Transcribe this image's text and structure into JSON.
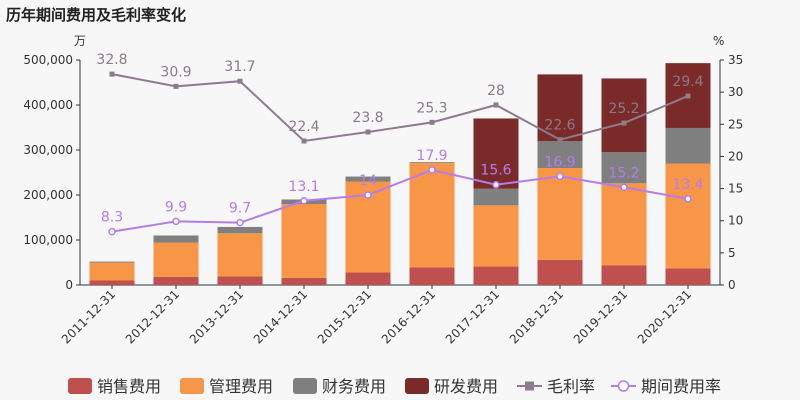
{
  "chart_data": {
    "type": "bar",
    "title": "历年期间费用及毛利率变化",
    "y_left_unit": "万",
    "y_right_unit": "%",
    "y_left_lim": [
      0,
      500000
    ],
    "y_left_ticks": [
      "0",
      "100,000",
      "200,000",
      "300,000",
      "400,000",
      "500,000"
    ],
    "y_right_lim": [
      0,
      35
    ],
    "y_right_ticks": [
      "0",
      "5",
      "10",
      "15",
      "20",
      "25",
      "30",
      "35"
    ],
    "categories": [
      "2011-12-31",
      "2012-12-31",
      "2013-12-31",
      "2014-12-31",
      "2015-12-31",
      "2016-12-31",
      "2017-12-31",
      "2018-12-31",
      "2019-12-31",
      "2020-12-31"
    ],
    "stacked_series": [
      {
        "name": "销售费用",
        "color": "#c0504d",
        "values": [
          10000,
          18000,
          19000,
          16000,
          28000,
          39000,
          41000,
          56000,
          44000,
          37000
        ]
      },
      {
        "name": "管理费用",
        "color": "#f79646",
        "values": [
          40000,
          76000,
          96000,
          164000,
          202000,
          232000,
          136000,
          204000,
          182000,
          233000
        ]
      },
      {
        "name": "财务费用",
        "color": "#7f7f7f",
        "values": [
          2000,
          16000,
          14000,
          10000,
          11000,
          2000,
          37000,
          60000,
          69000,
          79000
        ]
      },
      {
        "name": "研发费用",
        "color": "#7b2a2a",
        "values": [
          0,
          0,
          0,
          0,
          0,
          0,
          156000,
          148000,
          164000,
          144000
        ]
      }
    ],
    "line_series": [
      {
        "name": "毛利率",
        "color": "#8e7b8e",
        "marker": "square",
        "values": [
          32.8,
          30.9,
          31.7,
          22.4,
          23.8,
          25.3,
          28,
          22.6,
          25.2,
          29.4
        ],
        "labels": [
          "32.8",
          "30.9",
          "31.7",
          "22.4",
          "23.8",
          "25.3",
          "28",
          "22.6",
          "25.2",
          "29.4"
        ]
      },
      {
        "name": "期间费用率",
        "color": "#b57cf0",
        "marker": "circle",
        "values": [
          8.3,
          9.9,
          9.7,
          13.1,
          14,
          17.9,
          15.6,
          16.9,
          15.2,
          13.4
        ],
        "labels": [
          "8.3",
          "9.9",
          "9.7",
          "13.1",
          "14",
          "17.9",
          "15.6",
          "16.9",
          "15.2",
          "13.4"
        ]
      }
    ],
    "legend": [
      "销售费用",
      "管理费用",
      "财务费用",
      "研发费用",
      "毛利率",
      "期间费用率"
    ],
    "legend_position": "bottom",
    "grid": false
  }
}
